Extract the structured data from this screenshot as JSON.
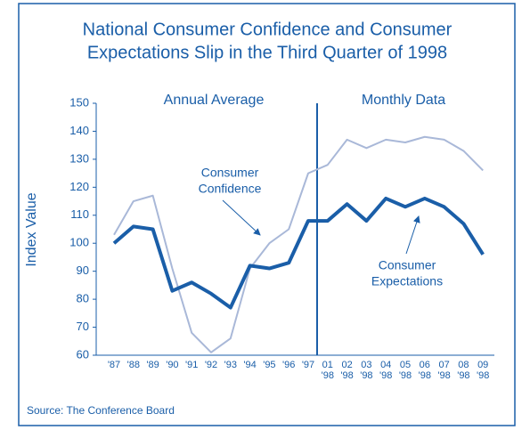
{
  "chart_data": {
    "type": "line",
    "title": [
      "National Consumer Confidence and Consumer",
      "Expectations Slip in the Third Quarter of 1998"
    ],
    "y_label": "Index Value",
    "source": "Source: The Conference Board",
    "section_labels": [
      "Annual Average",
      "Monthly Data"
    ],
    "categories": [
      "'87",
      "'88",
      "'89",
      "'90",
      "'91",
      "'92",
      "'93",
      "'94",
      "'95",
      "'96",
      "'97",
      "01 '98",
      "02 '98",
      "03 '98",
      "04 '98",
      "05 '98",
      "06 '98",
      "07 '98",
      "08 '98",
      "09 '98"
    ],
    "series": [
      {
        "name": [
          "Consumer",
          "Confidence"
        ],
        "color": "#a9b8d8",
        "width": 2,
        "values": [
          103,
          115,
          117,
          91,
          68,
          61,
          66,
          91,
          100,
          105,
          125,
          128,
          137,
          134,
          137,
          136,
          138,
          137,
          133,
          126
        ]
      },
      {
        "name": [
          "Consumer",
          "Expectations"
        ],
        "color": "#1a5ea8",
        "width": 4,
        "values": [
          100,
          106,
          105,
          83,
          86,
          82,
          77,
          92,
          91,
          93,
          108,
          108,
          114,
          108,
          116,
          113,
          116,
          113,
          107,
          96
        ]
      }
    ],
    "ylim": [
      60,
      150
    ],
    "yticks": [
      60,
      70,
      80,
      90,
      100,
      110,
      120,
      130,
      140,
      150
    ]
  }
}
